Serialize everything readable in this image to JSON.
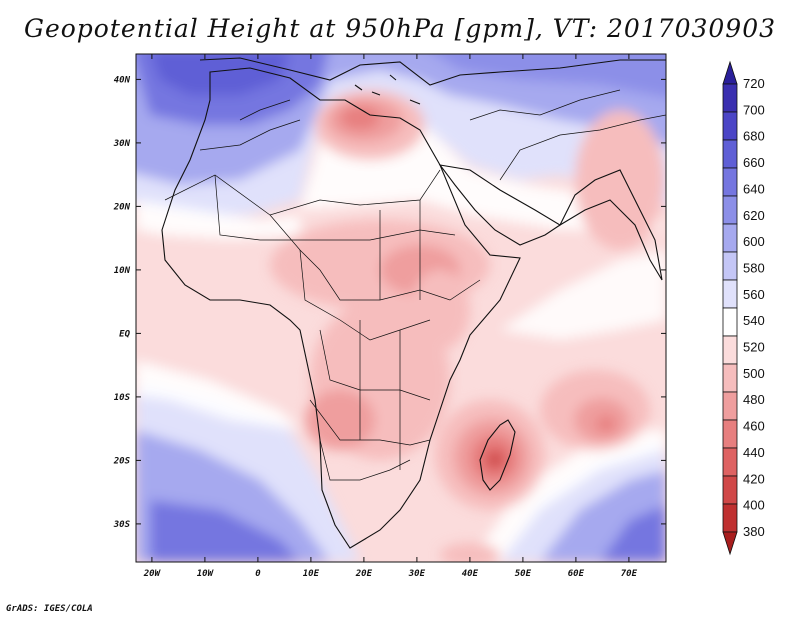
{
  "title": "Geopotential Height at 950hPa [gpm], VT: 2017030903",
  "credit": "GrADS: IGES/COLA",
  "lat_ticks": [
    "40N",
    "30N",
    "20N",
    "10N",
    "EQ",
    "10S",
    "20S",
    "30S"
  ],
  "lat_values": [
    40,
    30,
    20,
    10,
    0,
    -10,
    -20,
    -30
  ],
  "lon_ticks": [
    "20W",
    "10W",
    "0",
    "10E",
    "20E",
    "30E",
    "40E",
    "50E",
    "60E",
    "70E"
  ],
  "lon_values": [
    -20,
    -10,
    0,
    10,
    20,
    30,
    40,
    50,
    60,
    70
  ],
  "colorbar": {
    "levels": [
      "720",
      "700",
      "680",
      "660",
      "640",
      "620",
      "600",
      "580",
      "560",
      "540",
      "520",
      "500",
      "480",
      "460",
      "440",
      "420",
      "400",
      "380"
    ],
    "colors": [
      "#2a1f9a",
      "#3a2fb0",
      "#4b45c6",
      "#5f5fd6",
      "#7576e0",
      "#8c8fe8",
      "#a6a9ef",
      "#c4c6f6",
      "#e0e1fb",
      "#ffffff",
      "#fbdcdc",
      "#f6bdbd",
      "#ef9e9e",
      "#e77f7f",
      "#de6262",
      "#d04848",
      "#bf3030",
      "#a81d1d"
    ]
  }
}
